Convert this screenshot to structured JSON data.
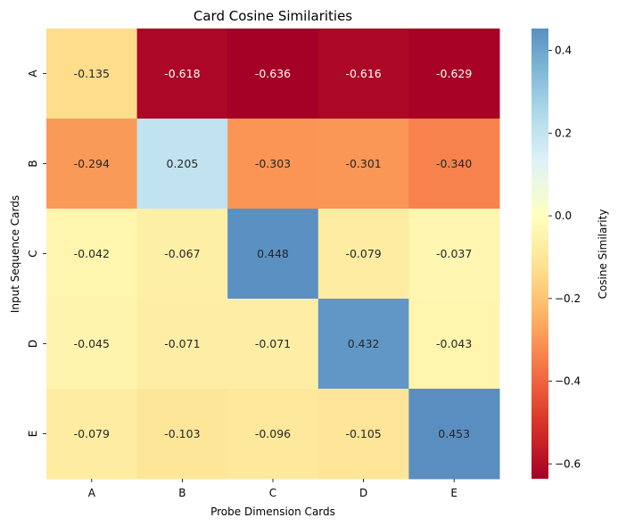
{
  "chart_data": {
    "type": "heatmap",
    "title": "Card Cosine Similarities",
    "xlabel": "Probe Dimension Cards",
    "ylabel": "Input Sequence Cards",
    "x_categories": [
      "A",
      "B",
      "C",
      "D",
      "E"
    ],
    "y_categories": [
      "A",
      "B",
      "C",
      "D",
      "E"
    ],
    "values": [
      [
        -0.135,
        -0.618,
        -0.636,
        -0.616,
        -0.629
      ],
      [
        -0.294,
        0.205,
        -0.303,
        -0.301,
        -0.34
      ],
      [
        -0.042,
        -0.067,
        0.448,
        -0.079,
        -0.037
      ],
      [
        -0.045,
        -0.071,
        -0.071,
        0.432,
        -0.043
      ],
      [
        -0.079,
        -0.103,
        -0.096,
        -0.105,
        0.453
      ]
    ],
    "value_labels": [
      [
        "-0.135",
        "-0.618",
        "-0.636",
        "-0.616",
        "-0.629"
      ],
      [
        "-0.294",
        "0.205",
        "-0.303",
        "-0.301",
        "-0.340"
      ],
      [
        "-0.042",
        "-0.067",
        "0.448",
        "-0.079",
        "-0.037"
      ],
      [
        "-0.045",
        "-0.071",
        "-0.071",
        "0.432",
        "-0.043"
      ],
      [
        "-0.079",
        "-0.103",
        "-0.096",
        "-0.105",
        "0.453"
      ]
    ],
    "colormap": "RdYlBu",
    "colormap_stops": [
      "#a50026",
      "#d73027",
      "#f46d43",
      "#fdae61",
      "#fee090",
      "#ffffbf",
      "#e0f3f8",
      "#abd9e9",
      "#74add1",
      "#4575b4",
      "#313695"
    ],
    "vmin": -0.636,
    "vmax": 0.453,
    "center": 0,
    "colorbar": {
      "label": "Cosine Similarity",
      "ticks": [
        -0.6,
        -0.4,
        -0.2,
        0.0,
        0.2,
        0.4
      ],
      "tick_labels": [
        "−0.6",
        "−0.4",
        "−0.2",
        "0.0",
        "0.2",
        "0.4"
      ]
    }
  }
}
